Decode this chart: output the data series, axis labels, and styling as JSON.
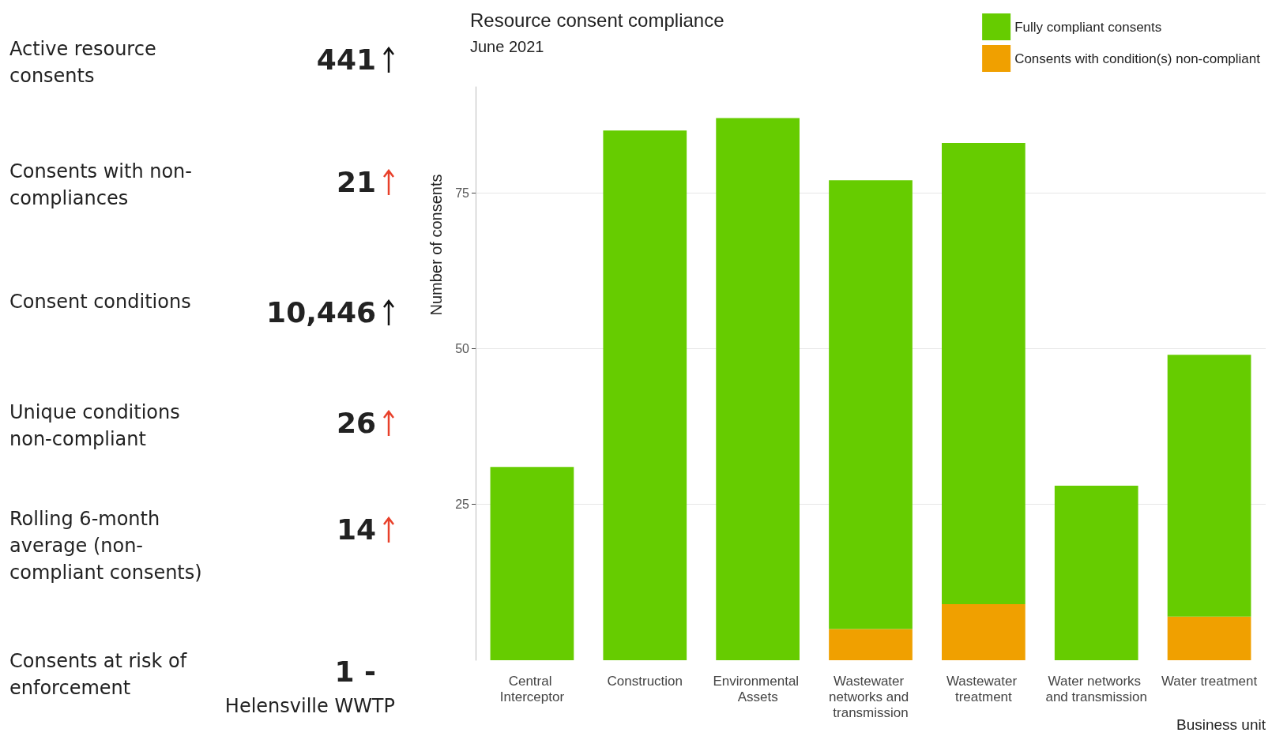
{
  "chart_data": [
    {
      "type": "other",
      "annotations": [
        "Active resource consents",
        "Consents with non-compliances",
        "Consent conditions",
        "Unique conditions non-compliant",
        "Rolling 6-month average (non-compliant consents)",
        "Consents at risk of enforcement",
        "441",
        "21",
        "10,446",
        "26",
        "14",
        "1 -",
        "Helensville WWTP"
      ],
      "colors": [
        "#111111",
        "#e8402a",
        "#111111",
        "#e8402a",
        "#e8402a",
        null
      ]
    },
    {
      "type": "bar",
      "title": "Resource consent compliance",
      "subtitle": "June 2021",
      "xlabel": "Business unit",
      "ylabel": "Number of consents",
      "categories": [
        "Central Interceptor",
        "Construction",
        "Environmental Assets",
        "Wastewater networks and transmission",
        "Wastewater treatment",
        "Water networks and transmission",
        "Water treatment"
      ],
      "series": [
        {
          "name": "Consents with condition(s) non-compliant",
          "color": "#f0a000",
          "values": [
            0,
            0,
            0,
            5,
            9,
            0,
            7
          ]
        },
        {
          "name": "Fully compliant consents",
          "color": "#66cc00",
          "values": [
            31,
            85,
            87,
            72,
            74,
            28,
            42
          ]
        }
      ],
      "stacked": true,
      "ylim": [
        0,
        92
      ],
      "yticks": [
        25,
        50,
        75
      ],
      "grid": "y",
      "legend": "top right"
    }
  ]
}
